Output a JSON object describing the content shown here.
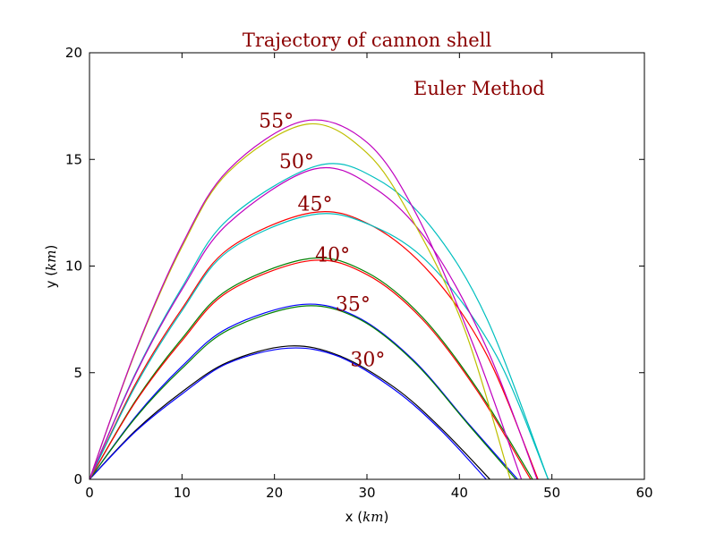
{
  "chart_data": {
    "type": "line",
    "title": "Trajectory of cannon shell",
    "annotation": "Euler Method",
    "xlabel": "x ($km$)",
    "ylabel": "y ($km$)",
    "xlim": [
      0,
      60
    ],
    "ylim": [
      0,
      20
    ],
    "xticks": [
      0,
      10,
      20,
      30,
      40,
      50,
      60
    ],
    "yticks": [
      0,
      5,
      10,
      15,
      20
    ],
    "grid": false,
    "text_color": "#8b0000",
    "angle_labels": [
      {
        "text": "30°",
        "x": 28.2,
        "y": 5.3
      },
      {
        "text": "35°",
        "x": 26.6,
        "y": 7.9
      },
      {
        "text": "40°",
        "x": 24.4,
        "y": 10.2
      },
      {
        "text": "45°",
        "x": 22.5,
        "y": 12.6
      },
      {
        "text": "50°",
        "x": 20.5,
        "y": 14.6
      },
      {
        "text": "55°",
        "x": 18.3,
        "y": 16.5
      }
    ],
    "series": [
      {
        "color": "#000000",
        "points": [
          [
            0,
            0
          ],
          [
            5,
            2.3
          ],
          [
            10,
            4.1
          ],
          [
            15,
            5.5
          ],
          [
            21.5,
            6.25
          ],
          [
            27,
            5.8
          ],
          [
            33,
            4.3
          ],
          [
            38,
            2.4
          ],
          [
            43.3,
            0
          ]
        ]
      },
      {
        "color": "#0000ff",
        "points": [
          [
            0,
            0
          ],
          [
            5,
            2.25
          ],
          [
            10,
            4.0
          ],
          [
            15,
            5.45
          ],
          [
            21.5,
            6.15
          ],
          [
            27,
            5.75
          ],
          [
            33,
            4.2
          ],
          [
            38,
            2.3
          ],
          [
            42.9,
            0
          ]
        ]
      },
      {
        "color": "#0000ff",
        "points": [
          [
            0,
            0
          ],
          [
            5,
            2.95
          ],
          [
            10,
            5.3
          ],
          [
            15,
            7.1
          ],
          [
            23,
            8.2
          ],
          [
            29,
            7.6
          ],
          [
            35,
            5.6
          ],
          [
            41,
            2.6
          ],
          [
            46.3,
            0
          ]
        ]
      },
      {
        "color": "#008000",
        "points": [
          [
            0,
            0
          ],
          [
            5,
            2.9
          ],
          [
            10,
            5.2
          ],
          [
            15,
            7.0
          ],
          [
            23,
            8.12
          ],
          [
            29,
            7.55
          ],
          [
            35,
            5.55
          ],
          [
            41,
            2.55
          ],
          [
            46.1,
            0
          ]
        ]
      },
      {
        "color": "#008000",
        "points": [
          [
            0,
            0
          ],
          [
            5,
            3.7
          ],
          [
            10,
            6.6
          ],
          [
            15,
            8.9
          ],
          [
            23.8,
            10.35
          ],
          [
            30,
            9.7
          ],
          [
            36,
            7.6
          ],
          [
            42,
            4.2
          ],
          [
            47.9,
            0
          ]
        ]
      },
      {
        "color": "#ff0000",
        "points": [
          [
            0,
            0
          ],
          [
            5,
            3.65
          ],
          [
            10,
            6.5
          ],
          [
            15,
            8.8
          ],
          [
            23.8,
            10.25
          ],
          [
            30,
            9.6
          ],
          [
            36,
            7.5
          ],
          [
            42,
            4.1
          ],
          [
            47.7,
            0
          ]
        ]
      },
      {
        "color": "#ff0000",
        "points": [
          [
            0,
            0
          ],
          [
            5,
            4.5
          ],
          [
            10,
            8.0
          ],
          [
            15,
            10.8
          ],
          [
            24,
            12.5
          ],
          [
            30.5,
            11.9
          ],
          [
            37,
            9.6
          ],
          [
            43,
            5.8
          ],
          [
            48.5,
            0
          ]
        ]
      },
      {
        "color": "#00bfbf",
        "points": [
          [
            0,
            0
          ],
          [
            5,
            4.4
          ],
          [
            10,
            7.9
          ],
          [
            15,
            10.7
          ],
          [
            24,
            12.4
          ],
          [
            30.5,
            11.9
          ],
          [
            37,
            10.0
          ],
          [
            44,
            5.8
          ],
          [
            49.6,
            0
          ]
        ]
      },
      {
        "color": "#00bfbf",
        "points": [
          [
            0,
            0
          ],
          [
            5,
            5.0
          ],
          [
            10,
            9.0
          ],
          [
            15,
            12.2
          ],
          [
            24.6,
            14.7
          ],
          [
            31,
            14.1
          ],
          [
            37,
            11.8
          ],
          [
            43,
            7.5
          ],
          [
            49.6,
            0
          ]
        ]
      },
      {
        "color": "#bf00bf",
        "points": [
          [
            0,
            0
          ],
          [
            5,
            4.95
          ],
          [
            10,
            8.9
          ],
          [
            15,
            12.0
          ],
          [
            24.3,
            14.55
          ],
          [
            31,
            13.6
          ],
          [
            37,
            10.9
          ],
          [
            43,
            6.1
          ],
          [
            48.4,
            0
          ]
        ]
      },
      {
        "color": "#bfbf00",
        "points": [
          [
            0,
            0
          ],
          [
            5,
            6.0
          ],
          [
            10,
            10.9
          ],
          [
            15,
            14.4
          ],
          [
            23.5,
            16.65
          ],
          [
            30,
            15.3
          ],
          [
            35,
            12.1
          ],
          [
            40.5,
            7.1
          ],
          [
            45.5,
            0
          ]
        ]
      },
      {
        "color": "#bf00bf",
        "points": [
          [
            0,
            0
          ],
          [
            5,
            6.05
          ],
          [
            10,
            11.0
          ],
          [
            15,
            14.5
          ],
          [
            23.2,
            16.8
          ],
          [
            30,
            15.8
          ],
          [
            35.5,
            12.3
          ],
          [
            41.5,
            6.3
          ],
          [
            46.7,
            0
          ]
        ]
      }
    ]
  }
}
